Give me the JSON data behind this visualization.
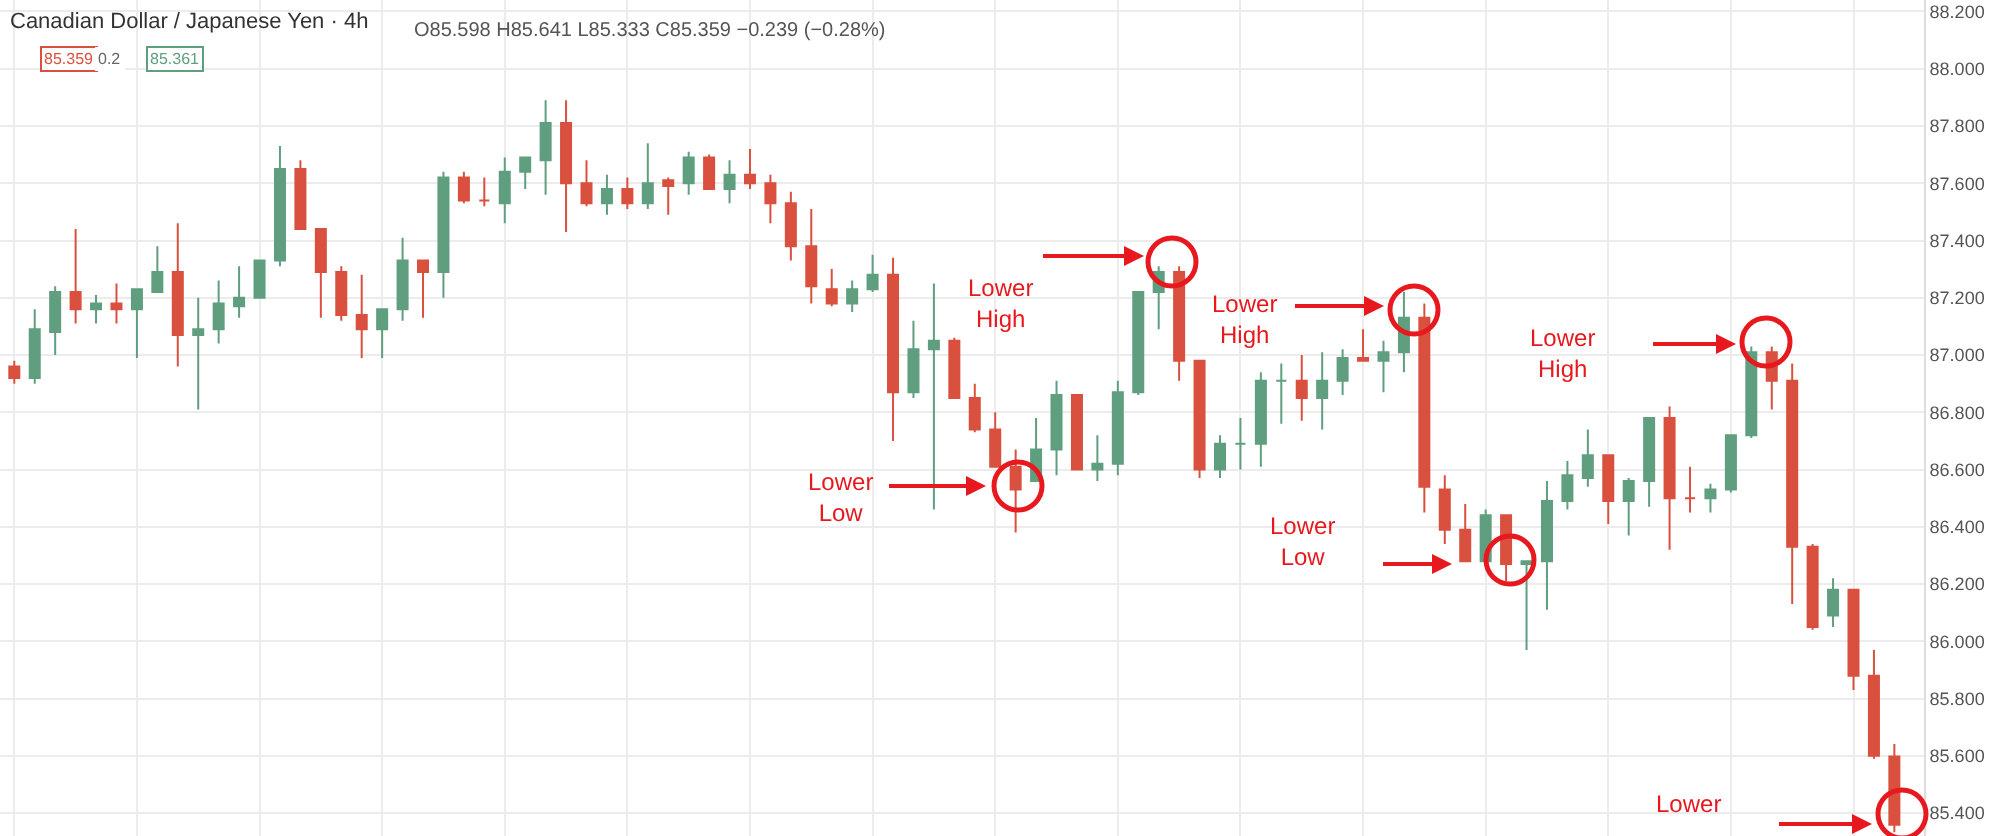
{
  "chart_data": {
    "type": "candlestick",
    "title": "Canadian Dollar / Japanese Yen · 4h",
    "subtitle": "O85.598 H85.641 L85.333 C85.359 −0.239 (−0.28%)",
    "categories": [
      null,
      null,
      null,
      null,
      null,
      null,
      null,
      null,
      null,
      null,
      null,
      null,
      null,
      null,
      null,
      null,
      null,
      null,
      null,
      null,
      null,
      null,
      null,
      null,
      null,
      null,
      null,
      null,
      null,
      null,
      null,
      null,
      null,
      null,
      null,
      null,
      null,
      null,
      null,
      null,
      null,
      null,
      null,
      null,
      null,
      null,
      null,
      null,
      null,
      null,
      null,
      null,
      null,
      null,
      null,
      null,
      null,
      null,
      null,
      null,
      null,
      null,
      null,
      null,
      null,
      null,
      null,
      null,
      null,
      null,
      null,
      null,
      null,
      null,
      null,
      null,
      null,
      null,
      null,
      null,
      null,
      null,
      null,
      null,
      null,
      null,
      null,
      null,
      null,
      null,
      null,
      null,
      null
    ],
    "ohlc": [
      [
        86.96,
        86.98,
        86.9,
        86.92
      ],
      [
        86.92,
        87.16,
        86.9,
        87.09
      ],
      [
        87.08,
        87.24,
        87.0,
        87.22
      ],
      [
        87.22,
        87.44,
        87.11,
        87.16
      ],
      [
        87.16,
        87.21,
        87.11,
        87.18
      ],
      [
        87.18,
        87.25,
        87.11,
        87.16
      ],
      [
        87.16,
        87.23,
        86.99,
        87.23
      ],
      [
        87.22,
        87.38,
        87.22,
        87.29
      ],
      [
        87.29,
        87.46,
        86.96,
        87.07
      ],
      [
        87.07,
        87.2,
        86.81,
        87.09
      ],
      [
        87.09,
        87.26,
        87.04,
        87.18
      ],
      [
        87.17,
        87.31,
        87.13,
        87.2
      ],
      [
        87.2,
        87.33,
        87.2,
        87.33
      ],
      [
        87.33,
        87.73,
        87.31,
        87.65
      ],
      [
        87.65,
        87.68,
        87.44,
        87.44
      ],
      [
        87.44,
        87.44,
        87.13,
        87.29
      ],
      [
        87.29,
        87.31,
        87.12,
        87.14
      ],
      [
        87.14,
        87.28,
        86.99,
        87.09
      ],
      [
        87.09,
        87.16,
        86.99,
        87.16
      ],
      [
        87.16,
        87.41,
        87.12,
        87.33
      ],
      [
        87.33,
        87.33,
        87.13,
        87.29
      ],
      [
        87.29,
        87.64,
        87.2,
        87.62
      ],
      [
        87.62,
        87.64,
        87.53,
        87.54
      ],
      [
        87.54,
        87.62,
        87.52,
        87.54
      ],
      [
        87.53,
        87.69,
        87.46,
        87.64
      ],
      [
        87.64,
        87.69,
        87.58,
        87.69
      ],
      [
        87.68,
        87.89,
        87.56,
        87.81
      ],
      [
        87.81,
        87.89,
        87.43,
        87.6
      ],
      [
        87.6,
        87.68,
        87.52,
        87.53
      ],
      [
        87.53,
        87.63,
        87.49,
        87.58
      ],
      [
        87.58,
        87.62,
        87.51,
        87.53
      ],
      [
        87.53,
        87.74,
        87.51,
        87.6
      ],
      [
        87.61,
        87.62,
        87.49,
        87.59
      ],
      [
        87.6,
        87.71,
        87.56,
        87.69
      ],
      [
        87.69,
        87.7,
        87.58,
        87.58
      ],
      [
        87.58,
        87.68,
        87.53,
        87.63
      ],
      [
        87.63,
        87.72,
        87.58,
        87.6
      ],
      [
        87.6,
        87.63,
        87.46,
        87.53
      ],
      [
        87.53,
        87.57,
        87.33,
        87.38
      ],
      [
        87.38,
        87.51,
        87.18,
        87.24
      ],
      [
        87.23,
        87.3,
        87.17,
        87.18
      ],
      [
        87.18,
        87.26,
        87.15,
        87.23
      ],
      [
        87.23,
        87.35,
        87.22,
        87.28
      ],
      [
        87.28,
        87.34,
        86.7,
        86.87
      ],
      [
        86.87,
        87.12,
        86.85,
        87.02
      ],
      [
        87.02,
        87.25,
        86.46,
        87.05
      ],
      [
        87.05,
        87.06,
        86.85,
        86.85
      ],
      [
        86.85,
        86.9,
        86.73,
        86.74
      ],
      [
        86.74,
        86.8,
        86.61,
        86.61
      ],
      [
        86.61,
        86.67,
        86.38,
        86.53
      ],
      [
        86.56,
        86.78,
        86.56,
        86.67
      ],
      [
        86.67,
        86.91,
        86.58,
        86.86
      ],
      [
        86.86,
        86.86,
        86.6,
        86.6
      ],
      [
        86.6,
        86.72,
        86.56,
        86.62
      ],
      [
        86.62,
        86.91,
        86.58,
        86.87
      ],
      [
        86.87,
        87.22,
        86.86,
        87.22
      ],
      [
        87.22,
        87.31,
        87.09,
        87.29
      ],
      [
        87.29,
        87.31,
        86.91,
        86.98
      ],
      [
        86.98,
        86.98,
        86.57,
        86.6
      ],
      [
        86.6,
        86.72,
        86.57,
        86.69
      ],
      [
        86.69,
        86.78,
        86.6,
        86.69
      ],
      [
        86.69,
        86.94,
        86.61,
        86.91
      ],
      [
        86.91,
        86.97,
        86.76,
        86.91
      ],
      [
        86.91,
        87.0,
        86.77,
        86.85
      ],
      [
        86.85,
        87.01,
        86.74,
        86.91
      ],
      [
        86.91,
        87.02,
        86.86,
        86.99
      ],
      [
        86.99,
        87.09,
        86.98,
        86.98
      ],
      [
        86.98,
        87.05,
        86.87,
        87.01
      ],
      [
        87.01,
        87.22,
        86.94,
        87.13
      ],
      [
        87.13,
        87.18,
        86.45,
        86.54
      ],
      [
        86.53,
        86.58,
        86.34,
        86.39
      ],
      [
        86.39,
        86.48,
        86.28,
        86.28
      ],
      [
        86.28,
        86.46,
        86.28,
        86.44
      ],
      [
        86.44,
        86.44,
        86.21,
        86.27
      ],
      [
        86.27,
        86.28,
        85.97,
        86.28
      ],
      [
        86.28,
        86.56,
        86.11,
        86.49
      ],
      [
        86.49,
        86.63,
        86.46,
        86.58
      ],
      [
        86.57,
        86.74,
        86.54,
        86.65
      ],
      [
        86.65,
        86.65,
        86.41,
        86.49
      ],
      [
        86.49,
        86.57,
        86.37,
        86.56
      ],
      [
        86.56,
        86.78,
        86.47,
        86.78
      ],
      [
        86.78,
        86.82,
        86.32,
        86.5
      ],
      [
        86.5,
        86.61,
        86.45,
        86.5
      ],
      [
        86.5,
        86.55,
        86.45,
        86.53
      ],
      [
        86.53,
        86.72,
        86.52,
        86.72
      ],
      [
        86.72,
        87.03,
        86.71,
        87.01
      ],
      [
        87.01,
        87.03,
        86.81,
        86.91
      ],
      [
        86.91,
        86.97,
        86.13,
        86.33
      ],
      [
        86.33,
        86.34,
        86.04,
        86.05
      ],
      [
        86.09,
        86.22,
        86.05,
        86.18
      ],
      [
        86.18,
        86.18,
        85.83,
        85.88
      ],
      [
        85.88,
        85.97,
        85.59,
        85.6
      ],
      [
        85.598,
        85.641,
        85.333,
        85.359
      ]
    ],
    "ylim": [
      85.32,
      88.24
    ],
    "yticks": [
      {
        "value": 85.4,
        "label": "85.400"
      },
      {
        "value": 85.6,
        "label": "85.600"
      },
      {
        "value": 85.8,
        "label": "85.800"
      },
      {
        "value": 86.0,
        "label": "86.000"
      },
      {
        "value": 86.2,
        "label": "86.200"
      },
      {
        "value": 86.4,
        "label": "86.400"
      },
      {
        "value": 86.6,
        "label": "86.600"
      },
      {
        "value": 86.8,
        "label": "86.800"
      },
      {
        "value": 87.0,
        "label": "87.000"
      },
      {
        "value": 87.2,
        "label": "87.200"
      },
      {
        "value": 87.4,
        "label": "87.400"
      },
      {
        "value": 87.6,
        "label": "87.600"
      },
      {
        "value": 87.8,
        "label": "87.800"
      },
      {
        "value": 88.0,
        "label": "88.000"
      },
      {
        "value": 88.2,
        "label": "88.200"
      }
    ],
    "grid": true,
    "tick_labels": "y",
    "annotations": [
      "Lower\nHigh",
      "Lower\nLow",
      "Lower\nHigh",
      "Lower\nLow",
      "Lower\nHigh",
      "Lower",
      "85.359",
      "0.2",
      "85.361"
    ]
  }
}
